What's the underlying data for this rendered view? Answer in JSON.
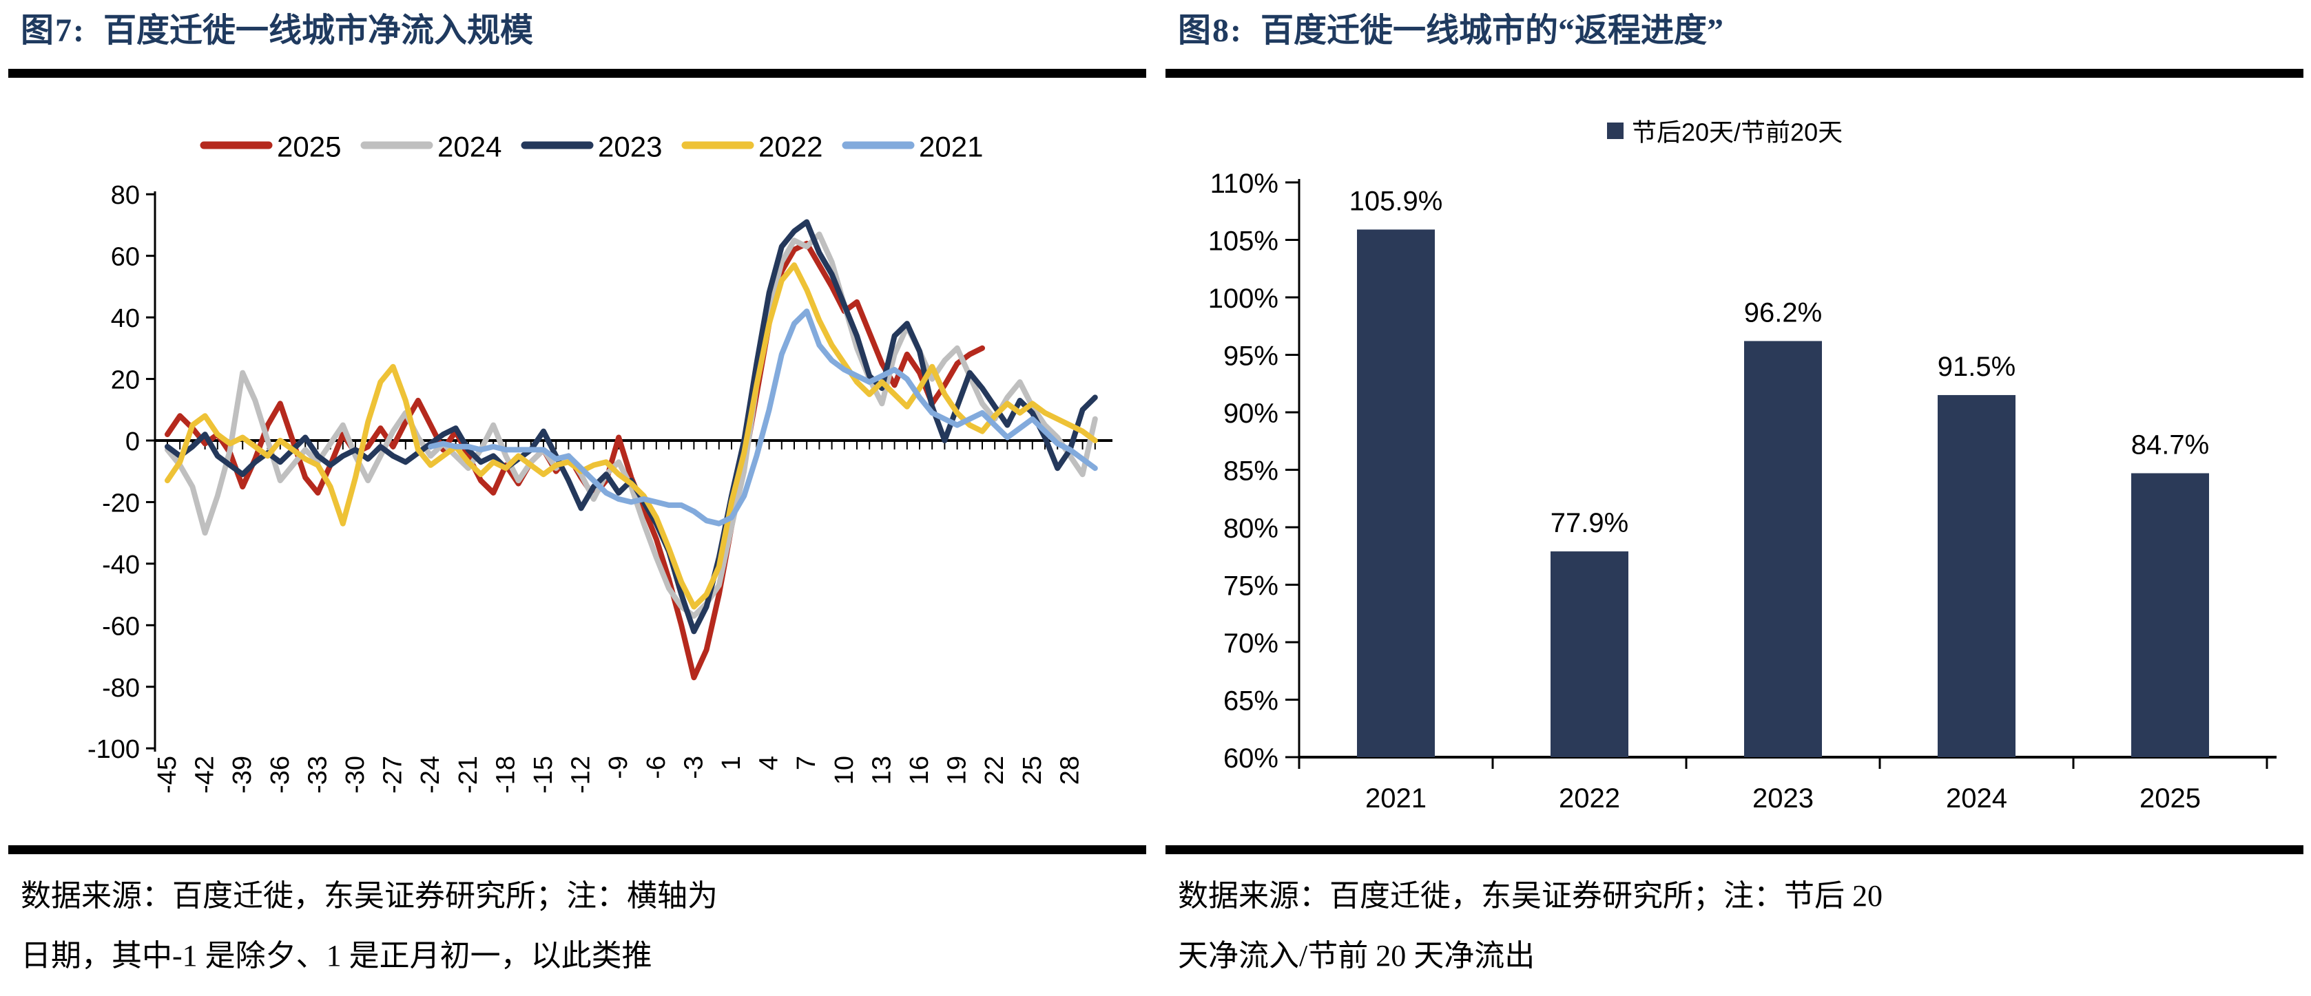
{
  "panels": {
    "fig7": {
      "label": "图7:",
      "title": "百度迁徙一线城市净流入规模",
      "source_line1": "数据来源：百度迁徙，东吴证券研究所；注：横轴为",
      "source_line2": "日期，其中-1 是除夕、1 是正月初一，以此类推"
    },
    "fig8": {
      "label": "图8:",
      "title": "百度迁徙一线城市的“返程进度”",
      "source_line1": "数据来源：百度迁徙，东吴证券研究所；注：节后 20",
      "source_line2": "天净流入/节前 20 天净流出"
    }
  },
  "colors": {
    "title": "#1F3A5F",
    "rule": "#000000",
    "axis": "#000000",
    "bar": "#2B3A58"
  },
  "chart_data": [
    {
      "id": "fig7",
      "type": "line",
      "title": "百度迁徙一线城市净流入规模",
      "xlabel": "",
      "ylabel": "",
      "ylim": [
        -100,
        80
      ],
      "y_ticks": [
        80,
        60,
        40,
        20,
        0,
        -20,
        -40,
        -60,
        -80,
        -100
      ],
      "grid": false,
      "legend_position": "top",
      "x_days": [
        -45,
        -44,
        -43,
        -42,
        -41,
        -40,
        -39,
        -38,
        -37,
        -36,
        -35,
        -34,
        -33,
        -32,
        -31,
        -30,
        -29,
        -28,
        -27,
        -26,
        -25,
        -24,
        -23,
        -22,
        -21,
        -20,
        -19,
        -18,
        -17,
        -16,
        -15,
        -14,
        -13,
        -12,
        -11,
        -10,
        -9,
        -8,
        -7,
        -6,
        -5,
        -4,
        -3,
        -2,
        -1,
        1,
        2,
        3,
        4,
        5,
        6,
        7,
        8,
        9,
        10,
        11,
        12,
        13,
        14,
        15,
        16,
        17,
        18,
        19,
        20,
        21,
        22,
        23,
        24,
        25,
        26,
        27,
        28,
        29,
        30
      ],
      "x_tick_labels": [
        "-45",
        "-42",
        "-39",
        "-36",
        "-33",
        "-30",
        "-27",
        "-24",
        "-21",
        "-18",
        "-15",
        "-12",
        "-9",
        "-6",
        "-3",
        "1",
        "4",
        "7",
        "10",
        "13",
        "16",
        "19",
        "22",
        "25",
        "28"
      ],
      "series": [
        {
          "name": "2025",
          "color": "#B5291D",
          "values": [
            2,
            8,
            4,
            -1,
            2,
            -4,
            -15,
            -6,
            5,
            12,
            0,
            -12,
            -17,
            -8,
            2,
            -4,
            -2,
            4,
            -2,
            6,
            13,
            5,
            -3,
            3,
            -5,
            -13,
            -17,
            -8,
            -14,
            -7,
            -3,
            -10,
            -5,
            -12,
            -18,
            -13,
            1,
            -12,
            -22,
            -32,
            -45,
            -60,
            -77,
            -68,
            -50,
            -28,
            -8,
            15,
            38,
            55,
            62,
            64,
            57,
            50,
            42,
            45,
            35,
            25,
            18,
            28,
            22,
            12,
            18,
            25,
            28,
            30,
            null,
            null,
            null,
            null,
            null,
            null,
            null,
            null,
            null
          ]
        },
        {
          "name": "2024",
          "color": "#BFBFBF",
          "values": [
            -3,
            -8,
            -15,
            -30,
            -18,
            -3,
            22,
            13,
            0,
            -13,
            -8,
            -3,
            -7,
            -1,
            5,
            -5,
            -13,
            -5,
            3,
            9,
            1,
            -5,
            -1,
            -5,
            -9,
            -3,
            5,
            -5,
            -13,
            -7,
            -3,
            -9,
            -5,
            -11,
            -19,
            -11,
            -7,
            -15,
            -27,
            -38,
            -48,
            -54,
            -57,
            -53,
            -47,
            -28,
            -10,
            18,
            42,
            58,
            65,
            63,
            67,
            58,
            44,
            30,
            20,
            12,
            28,
            37,
            29,
            20,
            26,
            30,
            21,
            12,
            7,
            14,
            19,
            11,
            5,
            1,
            -5,
            -11,
            7
          ]
        },
        {
          "name": "2023",
          "color": "#24385B",
          "values": [
            -2,
            -5,
            -2,
            2,
            -5,
            -8,
            -11,
            -7,
            -4,
            -7,
            -3,
            1,
            -5,
            -8,
            -5,
            -3,
            -6,
            -2,
            -5,
            -7,
            -4,
            -1,
            2,
            4,
            -3,
            -7,
            -5,
            -9,
            -6,
            -3,
            3,
            -5,
            -13,
            -22,
            -15,
            -11,
            -17,
            -13,
            -20,
            -27,
            -36,
            -50,
            -62,
            -54,
            -38,
            -18,
            0,
            25,
            48,
            63,
            68,
            71,
            61,
            54,
            44,
            34,
            21,
            17,
            34,
            38,
            29,
            11,
            0,
            11,
            22,
            17,
            11,
            5,
            13,
            9,
            1,
            -9,
            -3,
            10,
            14
          ]
        },
        {
          "name": "2022",
          "color": "#EEC236",
          "values": [
            -13,
            -7,
            5,
            8,
            2,
            -1,
            1,
            -2,
            -5,
            0,
            -3,
            -6,
            -8,
            -15,
            -27,
            -12,
            6,
            19,
            24,
            13,
            -3,
            -8,
            -5,
            -2,
            -7,
            -11,
            -7,
            -9,
            -5,
            -8,
            -11,
            -8,
            -7,
            -10,
            -8,
            -7,
            -11,
            -14,
            -18,
            -25,
            -35,
            -46,
            -54,
            -50,
            -41,
            -20,
            -4,
            18,
            38,
            52,
            57,
            49,
            39,
            31,
            25,
            19,
            15,
            19,
            15,
            11,
            17,
            24,
            15,
            9,
            5,
            3,
            8,
            12,
            9,
            12,
            9,
            7,
            5,
            3,
            0
          ]
        },
        {
          "name": "2021",
          "color": "#82AADC",
          "values": [
            null,
            null,
            null,
            null,
            null,
            null,
            null,
            null,
            null,
            null,
            null,
            null,
            null,
            null,
            null,
            null,
            null,
            null,
            null,
            null,
            null,
            -2,
            -1,
            -2,
            -2,
            -3,
            -2,
            -3,
            -3,
            -3,
            -3,
            -6,
            -5,
            -9,
            -13,
            -17,
            -19,
            -20,
            -19,
            -20,
            -21,
            -21,
            -23,
            -26,
            -27,
            -25,
            -18,
            -5,
            10,
            28,
            38,
            42,
            31,
            26,
            23,
            21,
            19,
            21,
            23,
            20,
            14,
            9,
            7,
            5,
            7,
            9,
            5,
            1,
            4,
            7,
            3,
            -1,
            -3,
            -6,
            -9
          ]
        }
      ]
    },
    {
      "id": "fig8",
      "type": "bar",
      "title": "百度迁徙一线城市的“返程进度”",
      "legend_label": "节后20天/节前20天",
      "legend_position": "top",
      "categories": [
        "2021",
        "2022",
        "2023",
        "2024",
        "2025"
      ],
      "values": [
        105.9,
        77.9,
        96.2,
        91.5,
        84.7
      ],
      "value_labels": [
        "105.9%",
        "77.9%",
        "96.2%",
        "91.5%",
        "84.7%"
      ],
      "ylim": [
        60,
        110
      ],
      "y_ticks": [
        110,
        105,
        100,
        95,
        90,
        85,
        80,
        75,
        70,
        65,
        60
      ],
      "y_tick_labels": [
        "110%",
        "105%",
        "100%",
        "95%",
        "90%",
        "85%",
        "80%",
        "75%",
        "70%",
        "65%",
        "60%"
      ],
      "bar_color": "#2B3A58",
      "grid": false
    }
  ]
}
